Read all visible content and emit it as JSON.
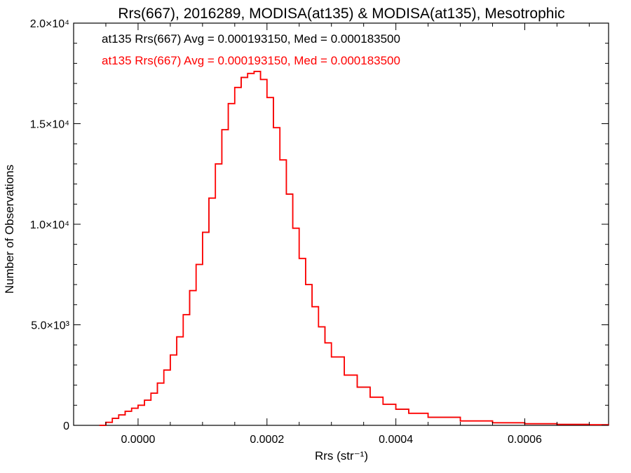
{
  "chart_data": {
    "type": "line",
    "title": "Rrs(667), 2016289, MODISA(at135) & MODISA(at135), Mesotrophic",
    "xlabel": "Rrs (str⁻¹)",
    "ylabel": "Number of Observations",
    "xlim": [
      -0.0001,
      0.00073
    ],
    "ylim": [
      0,
      20000
    ],
    "x_ticks": [
      {
        "value": 0.0,
        "label": "0.0000"
      },
      {
        "value": 0.0002,
        "label": "0.0002"
      },
      {
        "value": 0.0004,
        "label": "0.0004"
      },
      {
        "value": 0.0006,
        "label": "0.0006"
      }
    ],
    "y_ticks": [
      {
        "value": 0,
        "label": "0"
      },
      {
        "value": 5000,
        "label": "5.0×10³"
      },
      {
        "value": 10000,
        "label": "1.0×10⁴"
      },
      {
        "value": 15000,
        "label": "1.5×10⁴"
      },
      {
        "value": 20000,
        "label": "2.0×10⁴"
      }
    ],
    "grid": false,
    "legend_position": "top-left",
    "annotations": [
      {
        "text": "at135 Rrs(667) Avg = 0.000193150, Med = 0.000183500",
        "color": "#000000"
      },
      {
        "text": "at135 Rrs(667) Avg = 0.000193150, Med = 0.000183500",
        "color": "#ff0000"
      }
    ],
    "series": [
      {
        "color": "#000000",
        "x": [
          -6e-05,
          -5e-05,
          -4e-05,
          -3e-05,
          -2e-05,
          -1e-05,
          0.0,
          1e-05,
          2e-05,
          3e-05,
          4e-05,
          5e-05,
          6e-05,
          7e-05,
          8e-05,
          9e-05,
          0.0001,
          0.00011,
          0.00012,
          0.00013,
          0.00014,
          0.00015,
          0.00016,
          0.00017,
          0.00018,
          0.00019,
          0.0002,
          0.00021,
          0.00022,
          0.00023,
          0.00024,
          0.00025,
          0.00026,
          0.00027,
          0.00028,
          0.00029,
          0.0003,
          0.00032,
          0.00034,
          0.00036,
          0.00038,
          0.0004,
          0.00042,
          0.00045,
          0.0005,
          0.00055,
          0.0006,
          0.00065,
          0.0007,
          0.00073
        ],
        "values": [
          0,
          150,
          350,
          520,
          700,
          850,
          1000,
          1250,
          1600,
          2100,
          2750,
          3500,
          4400,
          5500,
          6700,
          8000,
          9600,
          11300,
          13000,
          14700,
          16000,
          16800,
          17300,
          17500,
          17600,
          17200,
          16300,
          14800,
          13200,
          11500,
          9800,
          8300,
          7000,
          5900,
          4900,
          4100,
          3400,
          2500,
          1900,
          1400,
          1050,
          800,
          600,
          400,
          220,
          130,
          80,
          50,
          30,
          20
        ]
      },
      {
        "color": "#ff0000",
        "x": [
          -6e-05,
          -5e-05,
          -4e-05,
          -3e-05,
          -2e-05,
          -1e-05,
          0.0,
          1e-05,
          2e-05,
          3e-05,
          4e-05,
          5e-05,
          6e-05,
          7e-05,
          8e-05,
          9e-05,
          0.0001,
          0.00011,
          0.00012,
          0.00013,
          0.00014,
          0.00015,
          0.00016,
          0.00017,
          0.00018,
          0.00019,
          0.0002,
          0.00021,
          0.00022,
          0.00023,
          0.00024,
          0.00025,
          0.00026,
          0.00027,
          0.00028,
          0.00029,
          0.0003,
          0.00032,
          0.00034,
          0.00036,
          0.00038,
          0.0004,
          0.00042,
          0.00045,
          0.0005,
          0.00055,
          0.0006,
          0.00065,
          0.0007,
          0.00073
        ],
        "values": [
          0,
          150,
          350,
          520,
          700,
          850,
          1000,
          1250,
          1600,
          2100,
          2750,
          3500,
          4400,
          5500,
          6700,
          8000,
          9600,
          11300,
          13000,
          14700,
          16000,
          16800,
          17300,
          17500,
          17600,
          17200,
          16300,
          14800,
          13200,
          11500,
          9800,
          8300,
          7000,
          5900,
          4900,
          4100,
          3400,
          2500,
          1900,
          1400,
          1050,
          800,
          600,
          400,
          220,
          130,
          80,
          50,
          30,
          20
        ]
      }
    ]
  }
}
